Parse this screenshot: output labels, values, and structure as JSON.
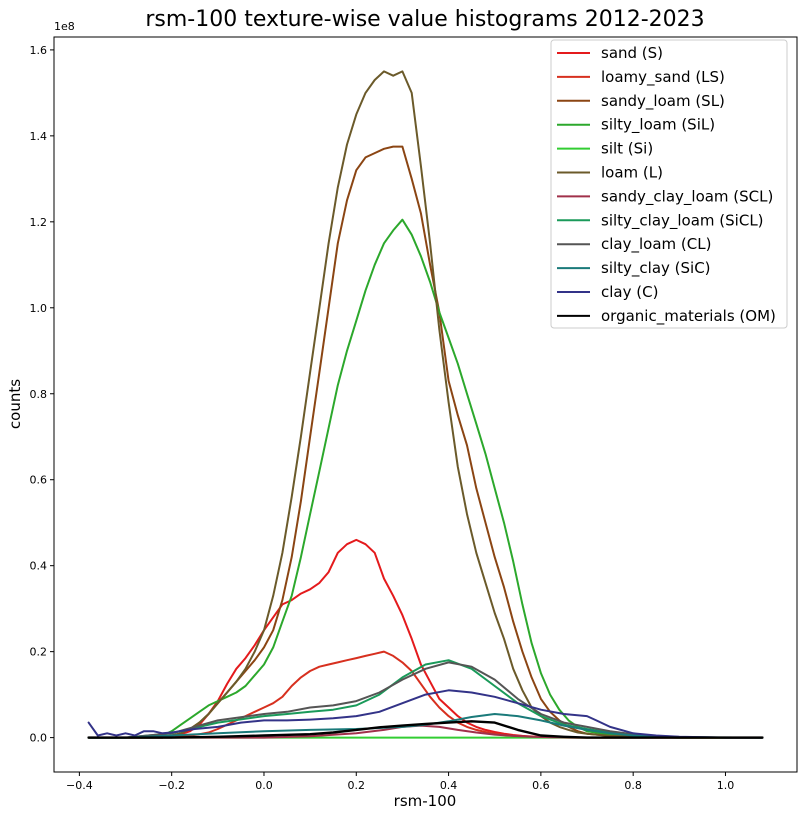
{
  "chart_data": {
    "type": "line",
    "title": "rsm-100 texture-wise value histograms 2012-2023",
    "xlabel": "rsm-100",
    "ylabel": "counts",
    "y_scale_label": "1e8",
    "xlim": [
      -0.455,
      1.155
    ],
    "ylim": [
      -8000000,
      163000000
    ],
    "x_ticks": [
      -0.4,
      -0.2,
      0.0,
      0.2,
      0.4,
      0.6,
      0.8,
      1.0
    ],
    "x_tick_labels": [
      "−0.4",
      "−0.2",
      "0.0",
      "0.2",
      "0.4",
      "0.6",
      "0.8",
      "1.0"
    ],
    "y_ticks": [
      0,
      20000000,
      40000000,
      60000000,
      80000000,
      100000000,
      120000000,
      140000000,
      160000000
    ],
    "y_tick_labels": [
      "0.0",
      "0.2",
      "0.4",
      "0.6",
      "0.8",
      "1.0",
      "1.2",
      "1.4",
      "1.6"
    ],
    "grid": false,
    "legend_position": "top-right",
    "series": [
      {
        "name": "sand (S)",
        "color": "#e41a1c",
        "x": [
          -0.38,
          -0.36,
          -0.34,
          -0.32,
          -0.3,
          -0.28,
          -0.26,
          -0.24,
          -0.22,
          -0.2,
          -0.18,
          -0.16,
          -0.14,
          -0.12,
          -0.1,
          -0.08,
          -0.06,
          -0.04,
          -0.02,
          0.0,
          0.02,
          0.04,
          0.06,
          0.08,
          0.1,
          0.12,
          0.14,
          0.16,
          0.18,
          0.2,
          0.22,
          0.24,
          0.26,
          0.28,
          0.3,
          0.32,
          0.34,
          0.36,
          0.38,
          0.4,
          0.42,
          0.44,
          0.46,
          0.48,
          0.5,
          0.52,
          0.54,
          0.56,
          0.58,
          0.6,
          0.62,
          0.64,
          0.66,
          0.68,
          0.7,
          0.75,
          0.8,
          0.85,
          0.9,
          0.95,
          1.0,
          1.05,
          1.08
        ],
        "y": [
          0,
          0,
          0,
          0,
          0,
          0,
          0,
          0,
          0,
          500000,
          800000,
          1500000,
          3000000,
          5500000,
          8500000,
          12500000,
          16000000,
          18500000,
          21500000,
          25000000,
          28000000,
          31000000,
          32000000,
          33500000,
          34500000,
          36000000,
          38500000,
          43000000,
          45000000,
          46000000,
          45000000,
          43000000,
          37000000,
          33000000,
          28500000,
          23000000,
          17000000,
          13000000,
          9000000,
          7000000,
          5000000,
          3500000,
          2500000,
          1800000,
          1300000,
          900000,
          600000,
          400000,
          250000,
          150000,
          100000,
          60000,
          30000,
          0,
          0,
          0,
          0,
          0,
          0,
          0,
          0,
          0,
          0
        ]
      },
      {
        "name": "loamy_sand (LS)",
        "color": "#d7301f",
        "x": [
          -0.38,
          -0.36,
          -0.34,
          -0.32,
          -0.3,
          -0.28,
          -0.26,
          -0.24,
          -0.22,
          -0.2,
          -0.18,
          -0.16,
          -0.14,
          -0.12,
          -0.1,
          -0.08,
          -0.06,
          -0.04,
          -0.02,
          0.0,
          0.02,
          0.04,
          0.06,
          0.08,
          0.1,
          0.12,
          0.14,
          0.16,
          0.18,
          0.2,
          0.22,
          0.24,
          0.26,
          0.28,
          0.3,
          0.32,
          0.34,
          0.36,
          0.38,
          0.4,
          0.42,
          0.44,
          0.46,
          0.48,
          0.5,
          0.52,
          0.54,
          0.56,
          0.58,
          0.6,
          0.62,
          0.64,
          0.66,
          0.68,
          0.7,
          0.75,
          0.8,
          0.85,
          0.9,
          0.95,
          1.0,
          1.05,
          1.08
        ],
        "y": [
          0,
          0,
          0,
          0,
          0,
          0,
          0,
          0,
          0,
          0,
          300000,
          500000,
          800000,
          1200000,
          2000000,
          3000000,
          4000000,
          5000000,
          6000000,
          7000000,
          8000000,
          9500000,
          12000000,
          14000000,
          15500000,
          16500000,
          17000000,
          17500000,
          18000000,
          18500000,
          19000000,
          19500000,
          20000000,
          19000000,
          17500000,
          15500000,
          12500000,
          9500000,
          7000000,
          5000000,
          3500000,
          2500000,
          1800000,
          1300000,
          900000,
          600000,
          400000,
          250000,
          150000,
          100000,
          60000,
          30000,
          0,
          0,
          0,
          0,
          0,
          0,
          0,
          0,
          0,
          0,
          0
        ]
      },
      {
        "name": "sandy_loam (SL)",
        "color": "#8b4513",
        "x": [
          -0.38,
          -0.36,
          -0.34,
          -0.32,
          -0.3,
          -0.28,
          -0.26,
          -0.24,
          -0.22,
          -0.2,
          -0.18,
          -0.16,
          -0.14,
          -0.12,
          -0.1,
          -0.08,
          -0.06,
          -0.04,
          -0.02,
          0.0,
          0.02,
          0.04,
          0.06,
          0.08,
          0.1,
          0.12,
          0.14,
          0.16,
          0.18,
          0.2,
          0.22,
          0.24,
          0.26,
          0.28,
          0.3,
          0.32,
          0.34,
          0.36,
          0.38,
          0.4,
          0.42,
          0.44,
          0.46,
          0.48,
          0.5,
          0.52,
          0.54,
          0.56,
          0.58,
          0.6,
          0.62,
          0.64,
          0.66,
          0.68,
          0.7,
          0.75,
          0.8,
          0.85,
          0.9,
          0.95,
          1.0,
          1.05,
          1.08
        ],
        "y": [
          0,
          0,
          0,
          0,
          0,
          0,
          0,
          0,
          0,
          500000,
          1000000,
          2000000,
          3500000,
          5500000,
          8000000,
          10500000,
          13000000,
          15500000,
          18000000,
          21000000,
          25000000,
          32000000,
          42000000,
          55000000,
          70000000,
          85000000,
          100000000,
          115000000,
          125000000,
          132000000,
          135000000,
          136000000,
          137000000,
          137500000,
          137500000,
          130000000,
          122000000,
          110000000,
          99000000,
          83000000,
          75000000,
          68000000,
          58000000,
          50000000,
          42000000,
          35000000,
          27000000,
          20000000,
          14000000,
          9000000,
          6000000,
          4000000,
          2500000,
          1500000,
          900000,
          400000,
          200000,
          100000,
          0,
          0,
          0,
          0,
          0
        ]
      },
      {
        "name": "silty_loam (SiL)",
        "color": "#2ca82c",
        "x": [
          -0.38,
          -0.36,
          -0.34,
          -0.32,
          -0.3,
          -0.28,
          -0.26,
          -0.24,
          -0.22,
          -0.2,
          -0.18,
          -0.16,
          -0.14,
          -0.12,
          -0.1,
          -0.08,
          -0.06,
          -0.04,
          -0.02,
          0.0,
          0.02,
          0.04,
          0.06,
          0.08,
          0.1,
          0.12,
          0.14,
          0.16,
          0.18,
          0.2,
          0.22,
          0.24,
          0.26,
          0.28,
          0.3,
          0.32,
          0.34,
          0.36,
          0.38,
          0.4,
          0.42,
          0.44,
          0.46,
          0.48,
          0.5,
          0.52,
          0.54,
          0.56,
          0.58,
          0.6,
          0.62,
          0.64,
          0.66,
          0.68,
          0.7,
          0.75,
          0.8,
          0.85,
          0.9,
          0.95,
          1.0,
          1.05,
          1.08
        ],
        "y": [
          0,
          0,
          0,
          0,
          0,
          0,
          0,
          0,
          500000,
          1500000,
          3000000,
          4500000,
          6000000,
          7500000,
          8500000,
          9500000,
          10500000,
          12000000,
          14500000,
          17000000,
          21000000,
          27000000,
          33000000,
          42000000,
          52000000,
          62000000,
          72000000,
          82000000,
          90000000,
          97000000,
          104000000,
          110000000,
          115000000,
          118000000,
          120500000,
          117000000,
          112000000,
          106000000,
          99000000,
          93000000,
          87000000,
          80000000,
          73000000,
          66000000,
          58000000,
          50000000,
          41000000,
          31000000,
          22000000,
          15000000,
          10000000,
          6500000,
          4000000,
          2500000,
          1500000,
          700000,
          300000,
          100000,
          0,
          0,
          0,
          0,
          0
        ]
      },
      {
        "name": "silt (Si)",
        "color": "#32cd32",
        "x": [
          -0.38,
          -0.2,
          0.0,
          0.2,
          0.4,
          0.6,
          0.8,
          1.0,
          1.08
        ],
        "y": [
          0,
          0,
          0,
          0,
          0,
          0,
          0,
          0,
          0
        ]
      },
      {
        "name": "loam (L)",
        "color": "#6b5a2a",
        "x": [
          -0.38,
          -0.36,
          -0.34,
          -0.32,
          -0.3,
          -0.28,
          -0.26,
          -0.24,
          -0.22,
          -0.2,
          -0.18,
          -0.16,
          -0.14,
          -0.12,
          -0.1,
          -0.08,
          -0.06,
          -0.04,
          -0.02,
          0.0,
          0.02,
          0.04,
          0.06,
          0.08,
          0.1,
          0.12,
          0.14,
          0.16,
          0.18,
          0.2,
          0.22,
          0.24,
          0.26,
          0.28,
          0.3,
          0.32,
          0.34,
          0.36,
          0.38,
          0.4,
          0.42,
          0.44,
          0.46,
          0.48,
          0.5,
          0.52,
          0.54,
          0.56,
          0.58,
          0.6,
          0.62,
          0.64,
          0.66,
          0.68,
          0.7,
          0.75,
          0.8,
          0.85,
          0.9,
          0.95,
          1.0,
          1.05,
          1.08
        ],
        "y": [
          0,
          0,
          0,
          0,
          0,
          0,
          0,
          0,
          0,
          500000,
          1000000,
          2000000,
          3500000,
          5500000,
          8000000,
          10500000,
          13000000,
          16000000,
          20000000,
          25000000,
          33000000,
          43000000,
          56000000,
          70000000,
          85000000,
          100000000,
          115000000,
          128000000,
          138000000,
          145000000,
          150000000,
          153000000,
          155000000,
          154000000,
          155000000,
          150000000,
          133000000,
          115000000,
          95000000,
          78000000,
          63000000,
          52000000,
          43000000,
          36000000,
          29000000,
          23000000,
          16000000,
          11000000,
          7000000,
          5000000,
          3500000,
          2500000,
          1800000,
          1200000,
          900000,
          400000,
          200000,
          100000,
          0,
          0,
          0,
          0,
          0
        ]
      },
      {
        "name": "sandy_clay_loam (SCL)",
        "color": "#a0304a",
        "x": [
          -0.38,
          -0.2,
          0.0,
          0.1,
          0.2,
          0.26,
          0.3,
          0.34,
          0.38,
          0.42,
          0.46,
          0.5,
          0.54,
          0.58,
          0.62,
          0.7,
          0.8,
          1.08
        ],
        "y": [
          0,
          0,
          0,
          300000,
          1000000,
          1800000,
          2500000,
          2800000,
          2500000,
          1800000,
          1200000,
          700000,
          400000,
          200000,
          100000,
          0,
          0,
          0
        ]
      },
      {
        "name": "silty_clay_loam (SiCL)",
        "color": "#1a9a5a",
        "x": [
          -0.38,
          -0.3,
          -0.2,
          -0.1,
          0.0,
          0.05,
          0.1,
          0.15,
          0.2,
          0.25,
          0.3,
          0.35,
          0.4,
          0.45,
          0.5,
          0.55,
          0.6,
          0.65,
          0.7,
          0.75,
          0.8,
          0.85,
          0.9,
          1.0,
          1.08
        ],
        "y": [
          0,
          0,
          1000000,
          3500000,
          5000000,
          5500000,
          6000000,
          6500000,
          7500000,
          10000000,
          14000000,
          17000000,
          18000000,
          16000000,
          12000000,
          8000000,
          5000000,
          3000000,
          2000000,
          1200000,
          600000,
          300000,
          100000,
          0,
          0
        ]
      },
      {
        "name": "clay_loam (CL)",
        "color": "#555555",
        "x": [
          -0.38,
          -0.3,
          -0.2,
          -0.1,
          0.0,
          0.05,
          0.1,
          0.15,
          0.2,
          0.25,
          0.3,
          0.35,
          0.4,
          0.45,
          0.5,
          0.55,
          0.6,
          0.65,
          0.7,
          0.75,
          0.8,
          0.85,
          0.9,
          1.0,
          1.08
        ],
        "y": [
          0,
          0,
          1000000,
          4000000,
          5500000,
          6000000,
          7000000,
          7500000,
          8500000,
          10500000,
          13500000,
          16000000,
          17500000,
          16500000,
          13500000,
          9000000,
          5500000,
          3500000,
          2500000,
          1500000,
          800000,
          400000,
          150000,
          0,
          0
        ]
      },
      {
        "name": "silty_clay (SiC)",
        "color": "#1a7a7a",
        "x": [
          -0.38,
          -0.3,
          -0.2,
          -0.1,
          0.0,
          0.1,
          0.2,
          0.3,
          0.35,
          0.4,
          0.45,
          0.5,
          0.55,
          0.6,
          0.65,
          0.7,
          0.75,
          0.8,
          0.9,
          1.08
        ],
        "y": [
          0,
          0,
          500000,
          1000000,
          1500000,
          1800000,
          2000000,
          2500000,
          3000000,
          3800000,
          4800000,
          5500000,
          5000000,
          4000000,
          2800000,
          1800000,
          1000000,
          500000,
          100000,
          0
        ]
      },
      {
        "name": "clay (C)",
        "color": "#333388",
        "x": [
          -0.38,
          -0.36,
          -0.34,
          -0.32,
          -0.3,
          -0.28,
          -0.26,
          -0.24,
          -0.22,
          -0.2,
          -0.15,
          -0.1,
          -0.05,
          0.0,
          0.05,
          0.1,
          0.15,
          0.2,
          0.25,
          0.3,
          0.35,
          0.4,
          0.45,
          0.5,
          0.55,
          0.6,
          0.65,
          0.7,
          0.72,
          0.75,
          0.8,
          0.85,
          0.9,
          1.0,
          1.08
        ],
        "y": [
          3500000,
          500000,
          1000000,
          500000,
          1000000,
          500000,
          1500000,
          1500000,
          1000000,
          1200000,
          2000000,
          2500000,
          3500000,
          4000000,
          4000000,
          4200000,
          4500000,
          5000000,
          6000000,
          8000000,
          10000000,
          11000000,
          10500000,
          9500000,
          8000000,
          6500000,
          5500000,
          5000000,
          4000000,
          2500000,
          1000000,
          500000,
          200000,
          0,
          0
        ]
      },
      {
        "name": "organic_materials (OM)",
        "color": "#000000",
        "x": [
          -0.38,
          -0.3,
          -0.2,
          -0.1,
          0.0,
          0.1,
          0.15,
          0.2,
          0.25,
          0.3,
          0.35,
          0.4,
          0.45,
          0.5,
          0.55,
          0.6,
          0.65,
          0.7,
          0.8,
          1.0,
          1.08
        ],
        "y": [
          0,
          0,
          0,
          200000,
          500000,
          800000,
          1200000,
          1800000,
          2400000,
          2800000,
          3200000,
          3500000,
          3800000,
          3500000,
          1800000,
          500000,
          200000,
          0,
          0,
          0,
          0
        ]
      }
    ]
  }
}
